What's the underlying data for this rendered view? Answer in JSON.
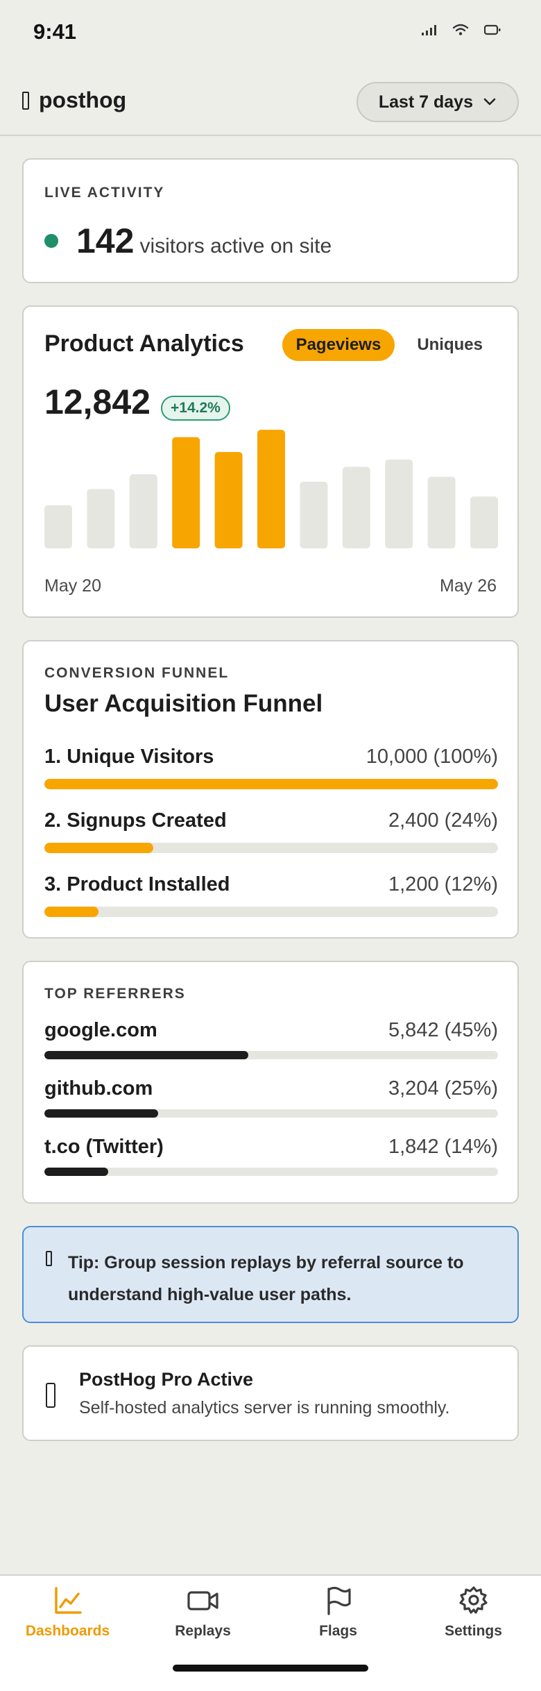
{
  "status": {
    "time": "9:41"
  },
  "header": {
    "brand": "posthog",
    "range_label": "Last 7 days"
  },
  "live": {
    "eyebrow": "LIVE ACTIVITY",
    "count": "142",
    "label": "visitors active on site"
  },
  "analytics": {
    "title": "Product Analytics",
    "toggle": [
      {
        "label": "Pageviews",
        "active": true
      },
      {
        "label": "Uniques",
        "active": false
      }
    ],
    "total": "12,842",
    "delta": "+14.2%",
    "start_date": "May 20",
    "end_date": "May 26"
  },
  "chart_data": {
    "type": "bar",
    "values": [
      35,
      48,
      60,
      90,
      78,
      96,
      54,
      66,
      72,
      58,
      42
    ],
    "highlighted": [
      false,
      false,
      false,
      true,
      true,
      true,
      false,
      false,
      false,
      false,
      false
    ],
    "ylim": [
      0,
      100
    ],
    "colors": {
      "highlight": "#f7a501",
      "default": "#e6e6e1"
    }
  },
  "funnel": {
    "eyebrow": "CONVERSION FUNNEL",
    "title": "User Acquisition Funnel",
    "steps": [
      {
        "label": "1. Unique Visitors",
        "value": "10,000 (100%)",
        "fraction": 1.0
      },
      {
        "label": "2. Signups Created",
        "value": "2,400 (24%)",
        "fraction": 0.24
      },
      {
        "label": "3. Product Installed",
        "value": "1,200 (12%)",
        "fraction": 0.12
      }
    ],
    "color": "#f7a501"
  },
  "referrers": {
    "eyebrow": "TOP REFERRERS",
    "items": [
      {
        "label": "google.com",
        "value": "5,842 (45%)",
        "fraction": 0.45
      },
      {
        "label": "github.com",
        "value": "3,204 (25%)",
        "fraction": 0.25
      },
      {
        "label": "t.co (Twitter)",
        "value": "1,842 (14%)",
        "fraction": 0.14
      }
    ]
  },
  "tip": {
    "text": "Tip: Group session replays by referral source to understand high-value user paths."
  },
  "pro": {
    "title": "PostHog Pro Active",
    "subtitle": "Self-hosted analytics server is running smoothly."
  },
  "tabs": [
    {
      "label": "Dashboards",
      "icon": "chart-icon",
      "active": true
    },
    {
      "label": "Replays",
      "icon": "video-icon",
      "active": false
    },
    {
      "label": "Flags",
      "icon": "flag-icon",
      "active": false
    },
    {
      "label": "Settings",
      "icon": "gear-icon",
      "active": false
    }
  ]
}
